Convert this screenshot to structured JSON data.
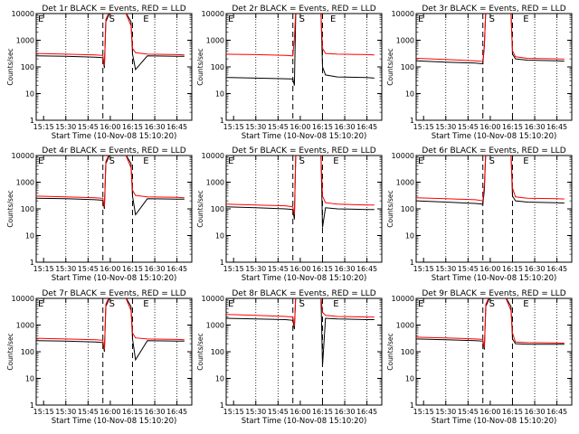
{
  "figure": {
    "xlabel": "Start Time (10-Nov-08 15:10:20)",
    "ylabel": "Counts/sec"
  },
  "style": {
    "events_color": "#000000",
    "lld_color": "#ff0000",
    "background": "#ffffff"
  },
  "chart_data": [
    {
      "type": "line",
      "title": "Det 1r BLACK = Events, RED = LLD",
      "xticks": [
        "15:15",
        "15:30",
        "15:45",
        "16:00",
        "16:15",
        "16:30",
        "16:45"
      ],
      "ytick_labels": [
        "1",
        "10",
        "100",
        "1000",
        "10000"
      ],
      "ylim": [
        1,
        10000
      ],
      "yscale": "log",
      "markers": {
        "E": [
          "15:10",
          "16:21"
        ],
        "S": [
          "15:58"
        ],
        "dashed": [
          "15:55",
          "16:15"
        ],
        "dotted": [
          "15:30",
          "15:45",
          "16:30",
          "16:45"
        ]
      },
      "series": [
        {
          "color": "black",
          "x": [
            "15:10",
            "15:30",
            "15:50",
            "15:55",
            "15:56",
            "15:57",
            "16:00",
            "16:05",
            "16:10",
            "16:14",
            "16:15",
            "16:17",
            "16:25",
            "16:45",
            "16:50"
          ],
          "y": [
            260,
            250,
            230,
            220,
            90,
            5000,
            12000,
            12000,
            12000,
            5000,
            300,
            80,
            260,
            250,
            250
          ]
        },
        {
          "color": "red",
          "x": [
            "15:10",
            "15:30",
            "15:50",
            "15:55",
            "15:56",
            "15:57",
            "16:00",
            "16:05",
            "16:10",
            "16:14",
            "16:15",
            "16:17",
            "16:25",
            "16:45",
            "16:50"
          ],
          "y": [
            320,
            300,
            280,
            270,
            110,
            6000,
            14000,
            13000,
            12000,
            3500,
            500,
            340,
            300,
            290,
            280
          ]
        }
      ]
    },
    {
      "type": "line",
      "title": "Det 2r BLACK = Events, RED = LLD",
      "xticks": [
        "15:15",
        "15:30",
        "15:45",
        "16:00",
        "16:15",
        "16:30",
        "16:45"
      ],
      "ytick_labels": [
        "1",
        "10",
        "100",
        "1000",
        "10000"
      ],
      "ylim": [
        1,
        10000
      ],
      "yscale": "log",
      "markers": {
        "E": [
          "15:10",
          "16:19"
        ],
        "S": [
          "15:58"
        ],
        "dashed": [
          "15:55",
          "16:15"
        ],
        "dotted": [
          "15:30",
          "15:45",
          "16:30",
          "16:45"
        ]
      },
      "series": [
        {
          "color": "black",
          "x": [
            "15:10",
            "15:30",
            "15:50",
            "15:55",
            "15:56",
            "15:57",
            "16:00",
            "16:05",
            "16:10",
            "16:14",
            "16:15",
            "16:17",
            "16:25",
            "16:45",
            "16:50"
          ],
          "y": [
            40,
            38,
            36,
            35,
            20,
            15000,
            15000,
            15000,
            15000,
            10000,
            100,
            50,
            42,
            40,
            38
          ]
        },
        {
          "color": "red",
          "x": [
            "15:10",
            "15:30",
            "15:50",
            "15:55",
            "15:56",
            "15:57",
            "16:00",
            "16:05",
            "16:10",
            "16:14",
            "16:15",
            "16:17",
            "16:25",
            "16:45",
            "16:50"
          ],
          "y": [
            300,
            290,
            270,
            260,
            1200,
            15000,
            15000,
            15000,
            15000,
            10000,
            500,
            320,
            300,
            290,
            280
          ]
        }
      ]
    },
    {
      "type": "line",
      "title": "Det 3r BLACK = Events, RED = LLD",
      "xticks": [
        "15:15",
        "15:30",
        "15:45",
        "16:00",
        "16:15",
        "16:30",
        "16:45"
      ],
      "ytick_labels": [
        "1",
        "10",
        "100",
        "1000",
        "10000"
      ],
      "ylim": [
        1,
        10000
      ],
      "yscale": "log",
      "markers": {
        "E": [
          "15:10",
          "16:21"
        ],
        "S": [
          "15:58"
        ],
        "dashed": [
          "15:55",
          "16:15"
        ],
        "dotted": [
          "15:30",
          "15:45",
          "16:30",
          "16:45"
        ]
      },
      "series": [
        {
          "color": "black",
          "x": [
            "15:10",
            "15:30",
            "15:50",
            "15:55",
            "15:56",
            "15:57",
            "16:00",
            "16:05",
            "16:10",
            "16:14",
            "16:15",
            "16:17",
            "16:25",
            "16:45",
            "16:50"
          ],
          "y": [
            170,
            150,
            140,
            130,
            600,
            15000,
            15000,
            15000,
            15000,
            12000,
            300,
            200,
            180,
            170,
            165
          ]
        },
        {
          "color": "red",
          "x": [
            "15:10",
            "15:30",
            "15:50",
            "15:55",
            "15:56",
            "15:57",
            "16:00",
            "16:05",
            "16:10",
            "16:14",
            "16:15",
            "16:17",
            "16:25",
            "16:45",
            "16:50"
          ],
          "y": [
            210,
            190,
            170,
            160,
            700,
            15000,
            15000,
            15000,
            15000,
            12000,
            400,
            240,
            210,
            200,
            195
          ]
        }
      ]
    },
    {
      "type": "line",
      "title": "Det 4r BLACK = Events, RED = LLD",
      "xticks": [
        "15:15",
        "15:30",
        "15:45",
        "16:00",
        "16:15",
        "16:30",
        "16:45"
      ],
      "ytick_labels": [
        "1",
        "10",
        "100",
        "1000",
        "10000"
      ],
      "ylim": [
        1,
        10000
      ],
      "yscale": "log",
      "markers": {
        "E": [
          "15:10",
          "16:21"
        ],
        "S": [
          "15:58"
        ],
        "dashed": [
          "15:55",
          "16:15"
        ],
        "dotted": [
          "15:30",
          "15:45",
          "16:30",
          "16:45"
        ]
      },
      "series": [
        {
          "color": "black",
          "x": [
            "15:10",
            "15:30",
            "15:50",
            "15:55",
            "15:56",
            "15:57",
            "16:00",
            "16:05",
            "16:10",
            "16:14",
            "16:15",
            "16:17",
            "16:25",
            "16:45",
            "16:50"
          ],
          "y": [
            250,
            240,
            220,
            210,
            100,
            5000,
            12000,
            12000,
            12000,
            5000,
            300,
            60,
            240,
            230,
            230
          ]
        },
        {
          "color": "red",
          "x": [
            "15:10",
            "15:30",
            "15:50",
            "15:55",
            "15:56",
            "15:57",
            "16:00",
            "16:05",
            "16:10",
            "16:14",
            "16:15",
            "16:17",
            "16:25",
            "16:45",
            "16:50"
          ],
          "y": [
            300,
            280,
            260,
            250,
            120,
            6000,
            14000,
            13000,
            12000,
            3500,
            500,
            320,
            280,
            270,
            260
          ]
        }
      ]
    },
    {
      "type": "line",
      "title": "Det 5r BLACK = Events, RED = LLD",
      "xticks": [
        "15:15",
        "15:30",
        "15:45",
        "16:00",
        "16:15",
        "16:30",
        "16:45"
      ],
      "ytick_labels": [
        "1",
        "10",
        "100",
        "1000",
        "10000"
      ],
      "ylim": [
        1,
        10000
      ],
      "yscale": "log",
      "markers": {
        "E": [
          "15:10",
          "16:21"
        ],
        "S": [
          "15:58"
        ],
        "dashed": [
          "15:55",
          "16:15"
        ],
        "dotted": [
          "15:30",
          "15:45",
          "16:30",
          "16:45"
        ]
      },
      "series": [
        {
          "color": "black",
          "x": [
            "15:10",
            "15:30",
            "15:50",
            "15:55",
            "15:56",
            "15:57",
            "16:00",
            "16:05",
            "16:10",
            "16:14",
            "16:15",
            "16:17",
            "16:25",
            "16:45",
            "16:50"
          ],
          "y": [
            120,
            110,
            100,
            95,
            40,
            15000,
            15000,
            15000,
            15000,
            10000,
            20,
            110,
            100,
            95,
            95
          ]
        },
        {
          "color": "red",
          "x": [
            "15:10",
            "15:30",
            "15:50",
            "15:55",
            "15:56",
            "15:57",
            "16:00",
            "16:05",
            "16:10",
            "16:14",
            "16:15",
            "16:17",
            "16:25",
            "16:45",
            "16:50"
          ],
          "y": [
            150,
            140,
            130,
            120,
            60,
            15000,
            15000,
            15000,
            15000,
            10000,
            300,
            170,
            150,
            140,
            140
          ]
        }
      ]
    },
    {
      "type": "line",
      "title": "Det 6r BLACK = Events, RED = LLD",
      "xticks": [
        "15:15",
        "15:30",
        "15:45",
        "16:00",
        "16:15",
        "16:30",
        "16:45"
      ],
      "ytick_labels": [
        "1",
        "10",
        "100",
        "1000",
        "10000"
      ],
      "ylim": [
        1,
        10000
      ],
      "yscale": "log",
      "markers": {
        "E": [
          "15:10",
          "16:21"
        ],
        "S": [
          "15:58"
        ],
        "dashed": [
          "15:55",
          "16:15"
        ],
        "dotted": [
          "15:30",
          "15:45",
          "16:30",
          "16:45"
        ]
      },
      "series": [
        {
          "color": "black",
          "x": [
            "15:10",
            "15:30",
            "15:50",
            "15:55",
            "15:56",
            "15:57",
            "16:00",
            "16:05",
            "16:10",
            "16:14",
            "16:15",
            "16:17",
            "16:25",
            "16:45",
            "16:50"
          ],
          "y": [
            200,
            180,
            160,
            150,
            500,
            15000,
            15000,
            15000,
            15000,
            12000,
            300,
            200,
            180,
            170,
            165
          ]
        },
        {
          "color": "red",
          "x": [
            "15:10",
            "15:30",
            "15:50",
            "15:55",
            "15:56",
            "15:57",
            "16:00",
            "16:05",
            "16:10",
            "16:14",
            "16:15",
            "16:17",
            "16:25",
            "16:45",
            "16:50"
          ],
          "y": [
            260,
            240,
            220,
            200,
            800,
            15000,
            15000,
            15000,
            15000,
            12000,
            600,
            280,
            250,
            240,
            235
          ]
        }
      ]
    },
    {
      "type": "line",
      "title": "Det 7r BLACK = Events, RED = LLD",
      "xticks": [
        "15:15",
        "15:30",
        "15:45",
        "16:00",
        "16:15",
        "16:30",
        "16:45"
      ],
      "ytick_labels": [
        "1",
        "10",
        "100",
        "1000",
        "10000"
      ],
      "ylim": [
        1,
        10000
      ],
      "yscale": "log",
      "markers": {
        "E": [
          "15:10",
          "16:21"
        ],
        "S": [
          "15:58"
        ],
        "dashed": [
          "15:55",
          "16:15"
        ],
        "dotted": [
          "15:30",
          "15:45",
          "16:30",
          "16:45"
        ]
      },
      "series": [
        {
          "color": "black",
          "x": [
            "15:10",
            "15:30",
            "15:50",
            "15:55",
            "15:56",
            "15:57",
            "16:00",
            "16:05",
            "16:10",
            "16:14",
            "16:15",
            "16:17",
            "16:25",
            "16:45",
            "16:50"
          ],
          "y": [
            260,
            250,
            230,
            220,
            100,
            5000,
            12000,
            12000,
            12000,
            5000,
            300,
            50,
            260,
            250,
            250
          ]
        },
        {
          "color": "red",
          "x": [
            "15:10",
            "15:30",
            "15:50",
            "15:55",
            "15:56",
            "15:57",
            "16:00",
            "16:05",
            "16:10",
            "16:14",
            "16:15",
            "16:17",
            "16:25",
            "16:45",
            "16:50"
          ],
          "y": [
            320,
            300,
            280,
            270,
            120,
            6000,
            14000,
            13000,
            12000,
            3500,
            500,
            330,
            300,
            290,
            280
          ]
        }
      ]
    },
    {
      "type": "line",
      "title": "Det 8r BLACK = Events, RED = LLD",
      "xticks": [
        "15:15",
        "15:30",
        "15:45",
        "16:00",
        "16:15",
        "16:30",
        "16:45"
      ],
      "ytick_labels": [
        "1",
        "10",
        "100",
        "1000",
        "10000"
      ],
      "ylim": [
        1,
        10000
      ],
      "yscale": "log",
      "markers": {
        "E": [
          "15:10",
          "16:21"
        ],
        "S": [
          "15:58"
        ],
        "dashed": [
          "15:55",
          "16:15"
        ],
        "dotted": [
          "15:30",
          "15:45",
          "16:30",
          "16:45"
        ]
      },
      "series": [
        {
          "color": "black",
          "x": [
            "15:10",
            "15:30",
            "15:50",
            "15:55",
            "15:56",
            "15:57",
            "16:00",
            "16:05",
            "16:10",
            "16:14",
            "16:15",
            "16:17",
            "16:25",
            "16:45",
            "16:50"
          ],
          "y": [
            1800,
            1700,
            1600,
            1500,
            700,
            15000,
            15000,
            15000,
            15000,
            12000,
            30,
            1800,
            1700,
            1600,
            1600
          ]
        },
        {
          "color": "red",
          "x": [
            "15:10",
            "15:30",
            "15:50",
            "15:55",
            "15:56",
            "15:57",
            "16:00",
            "16:05",
            "16:10",
            "16:14",
            "16:15",
            "16:17",
            "16:25",
            "16:45",
            "16:50"
          ],
          "y": [
            2500,
            2300,
            2100,
            2000,
            900,
            15000,
            15000,
            15000,
            15000,
            12000,
            3000,
            2300,
            2100,
            2000,
            2000
          ]
        }
      ]
    },
    {
      "type": "line",
      "title": "Det 9r BLACK = Events, RED = LLD",
      "xticks": [
        "15:15",
        "15:30",
        "15:45",
        "16:00",
        "16:15",
        "16:30",
        "16:45"
      ],
      "ytick_labels": [
        "1",
        "10",
        "100",
        "1000",
        "10000"
      ],
      "ylim": [
        1,
        10000
      ],
      "yscale": "log",
      "markers": {
        "E": [
          "15:10",
          "16:21"
        ],
        "S": [
          "15:58"
        ],
        "dashed": [
          "15:55",
          "16:15"
        ],
        "dotted": [
          "15:30",
          "15:45",
          "16:30",
          "16:45"
        ]
      },
      "series": [
        {
          "color": "black",
          "x": [
            "15:10",
            "15:30",
            "15:50",
            "15:55",
            "15:56",
            "15:57",
            "16:00",
            "16:05",
            "16:10",
            "16:14",
            "16:15",
            "16:17",
            "16:25",
            "16:45",
            "16:50"
          ],
          "y": [
            300,
            280,
            260,
            250,
            120,
            5000,
            12000,
            12000,
            12000,
            5000,
            300,
            200,
            190,
            190,
            190
          ]
        },
        {
          "color": "red",
          "x": [
            "15:10",
            "15:30",
            "15:50",
            "15:55",
            "15:56",
            "15:57",
            "16:00",
            "16:05",
            "16:10",
            "16:14",
            "16:15",
            "16:17",
            "16:25",
            "16:45",
            "16:50"
          ],
          "y": [
            350,
            330,
            300,
            290,
            140,
            6000,
            14000,
            13000,
            12000,
            3500,
            500,
            230,
            220,
            215,
            210
          ]
        }
      ]
    }
  ]
}
